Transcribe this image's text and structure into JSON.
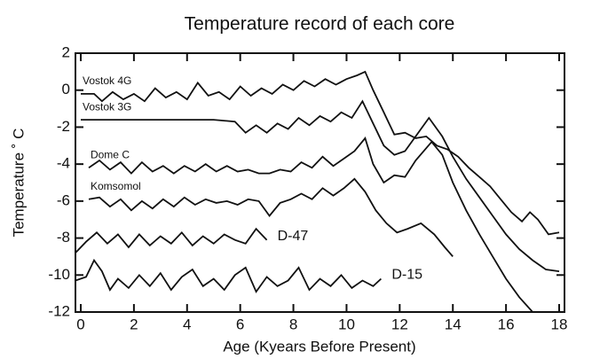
{
  "chart_data": {
    "type": "line",
    "title": "Temperature record of each core",
    "x_label": "Age (Kyears Before Present)",
    "y_label": "Temperature ˚ C",
    "color": "#111111",
    "xlim": [
      -0.2,
      18.2
    ],
    "xticks": [
      0,
      2,
      4,
      6,
      8,
      10,
      12,
      14,
      16,
      18
    ],
    "ylim": [
      -12,
      2
    ],
    "yticks": [
      2,
      0,
      -2,
      -4,
      -6,
      -8,
      -10,
      -12
    ],
    "series": [
      {
        "name": "Vostok 4G",
        "x": [
          0,
          0.5,
          0.8,
          1.2,
          1.6,
          2,
          2.4,
          2.8,
          3.2,
          3.6,
          4,
          4.4,
          4.8,
          5.2,
          5.6,
          6,
          6.4,
          6.8,
          7.2,
          7.6,
          8,
          8.4,
          8.8,
          9.2,
          9.6,
          10,
          10.4,
          10.7,
          11,
          11.4,
          11.8,
          12.2,
          12.6,
          13,
          13.4,
          13.8,
          14.2,
          14.6,
          15,
          15.4,
          15.8,
          16.2,
          16.6,
          16.9,
          17.2,
          17.6,
          18
        ],
        "values": [
          -0.2,
          -0.2,
          -0.6,
          -0.1,
          -0.5,
          -0.2,
          -0.6,
          0.1,
          -0.4,
          -0.1,
          -0.5,
          0.4,
          -0.3,
          -0.1,
          -0.5,
          0.2,
          -0.3,
          0.1,
          -0.2,
          0.3,
          0,
          0.5,
          0.2,
          0.6,
          0.3,
          0.6,
          0.8,
          1,
          0,
          -1.2,
          -2.4,
          -2.3,
          -2.6,
          -2.5,
          -3,
          -3.2,
          -3.6,
          -4.2,
          -4.7,
          -5.2,
          -5.9,
          -6.6,
          -7.1,
          -6.6,
          -7,
          -7.8,
          -7.7
        ]
      },
      {
        "name": "Vostok 3G",
        "x": [
          0,
          1,
          2,
          3,
          4,
          5,
          5.8,
          6.2,
          6.6,
          7,
          7.4,
          7.8,
          8.2,
          8.6,
          9,
          9.4,
          9.8,
          10.2,
          10.6,
          11,
          11.4,
          11.8,
          12.2,
          12.6,
          13.1,
          13.6,
          14,
          14.5,
          15,
          15.5,
          16,
          16.5,
          17,
          17.5,
          18
        ],
        "values": [
          -1.6,
          -1.6,
          -1.6,
          -1.6,
          -1.6,
          -1.6,
          -1.7,
          -2.3,
          -1.9,
          -2.3,
          -1.8,
          -2.1,
          -1.5,
          -1.9,
          -1.4,
          -1.7,
          -1.2,
          -1.5,
          -0.6,
          -1.8,
          -3,
          -3.5,
          -3.3,
          -2.5,
          -1.5,
          -2.5,
          -3.6,
          -4.8,
          -5.8,
          -6.8,
          -7.8,
          -8.6,
          -9.2,
          -9.7,
          -9.8
        ]
      },
      {
        "name": "Dome C",
        "x": [
          0.3,
          0.7,
          1.1,
          1.5,
          1.9,
          2.3,
          2.7,
          3.1,
          3.5,
          3.9,
          4.3,
          4.7,
          5.1,
          5.5,
          5.9,
          6.3,
          6.7,
          7.1,
          7.5,
          7.9,
          8.3,
          8.7,
          9.1,
          9.5,
          9.9,
          10.3,
          10.7,
          11,
          11.4,
          11.8,
          12.2,
          12.6,
          13.2,
          13.6,
          14,
          14.5,
          15,
          15.5,
          16,
          16.5,
          17
        ],
        "values": [
          -4.2,
          -3.8,
          -4.3,
          -3.9,
          -4.5,
          -3.9,
          -4.4,
          -4.1,
          -4.5,
          -4.1,
          -4.4,
          -4,
          -4.4,
          -4.1,
          -4.4,
          -4.3,
          -4.5,
          -4.5,
          -4.3,
          -4.4,
          -3.9,
          -4.2,
          -3.6,
          -4.1,
          -3.7,
          -3.3,
          -2.6,
          -4,
          -5,
          -4.6,
          -4.7,
          -3.8,
          -2.8,
          -3.5,
          -5,
          -6.5,
          -7.8,
          -9,
          -10.2,
          -11.2,
          -12
        ]
      },
      {
        "name": "Komsomol",
        "x": [
          0.3,
          0.7,
          1.1,
          1.5,
          1.9,
          2.3,
          2.7,
          3.1,
          3.5,
          3.9,
          4.3,
          4.7,
          5.1,
          5.5,
          5.9,
          6.3,
          6.7,
          7.1,
          7.5,
          7.9,
          8.3,
          8.7,
          9.1,
          9.5,
          9.9,
          10.3,
          10.7,
          11.1,
          11.5,
          11.9,
          12.3,
          12.8,
          13.3,
          13.7,
          14
        ],
        "values": [
          -5.9,
          -5.8,
          -6.3,
          -5.9,
          -6.5,
          -6,
          -6.4,
          -5.9,
          -6.3,
          -5.8,
          -6.2,
          -5.9,
          -6.1,
          -6,
          -6.2,
          -5.9,
          -6,
          -6.8,
          -6.1,
          -5.9,
          -5.6,
          -5.9,
          -5.3,
          -5.7,
          -5.3,
          -4.8,
          -5.5,
          -6.5,
          -7.2,
          -7.7,
          -7.5,
          -7.2,
          -7.8,
          -8.5,
          -9
        ]
      },
      {
        "name": "D-47",
        "x": [
          -0.2,
          0.2,
          0.6,
          1,
          1.4,
          1.8,
          2.2,
          2.6,
          3,
          3.4,
          3.8,
          4.2,
          4.6,
          5,
          5.4,
          5.8,
          6.2,
          6.6,
          7
        ],
        "values": [
          -8.8,
          -8.2,
          -7.7,
          -8.3,
          -7.8,
          -8.5,
          -7.8,
          -8.4,
          -7.9,
          -8.3,
          -7.7,
          -8.4,
          -7.9,
          -8.3,
          -7.8,
          -8.1,
          -8.3,
          -7.5,
          -8.1
        ]
      },
      {
        "name": "D-15",
        "x": [
          -0.2,
          0.2,
          0.5,
          0.8,
          1.1,
          1.4,
          1.8,
          2.2,
          2.6,
          3,
          3.4,
          3.8,
          4.2,
          4.6,
          5,
          5.4,
          5.8,
          6.2,
          6.6,
          7,
          7.4,
          7.8,
          8.2,
          8.6,
          9,
          9.4,
          9.8,
          10.2,
          10.6,
          11,
          11.3
        ],
        "values": [
          -10.3,
          -10.1,
          -9.2,
          -9.8,
          -10.8,
          -10.2,
          -10.7,
          -10,
          -10.6,
          -9.9,
          -10.8,
          -10.1,
          -9.7,
          -10.6,
          -10.2,
          -10.8,
          -10,
          -9.6,
          -10.9,
          -10.1,
          -10.6,
          -10.3,
          -9.6,
          -10.8,
          -10.2,
          -10.6,
          -10,
          -10.7,
          -10.3,
          -10.6,
          -10.2
        ]
      }
    ]
  }
}
